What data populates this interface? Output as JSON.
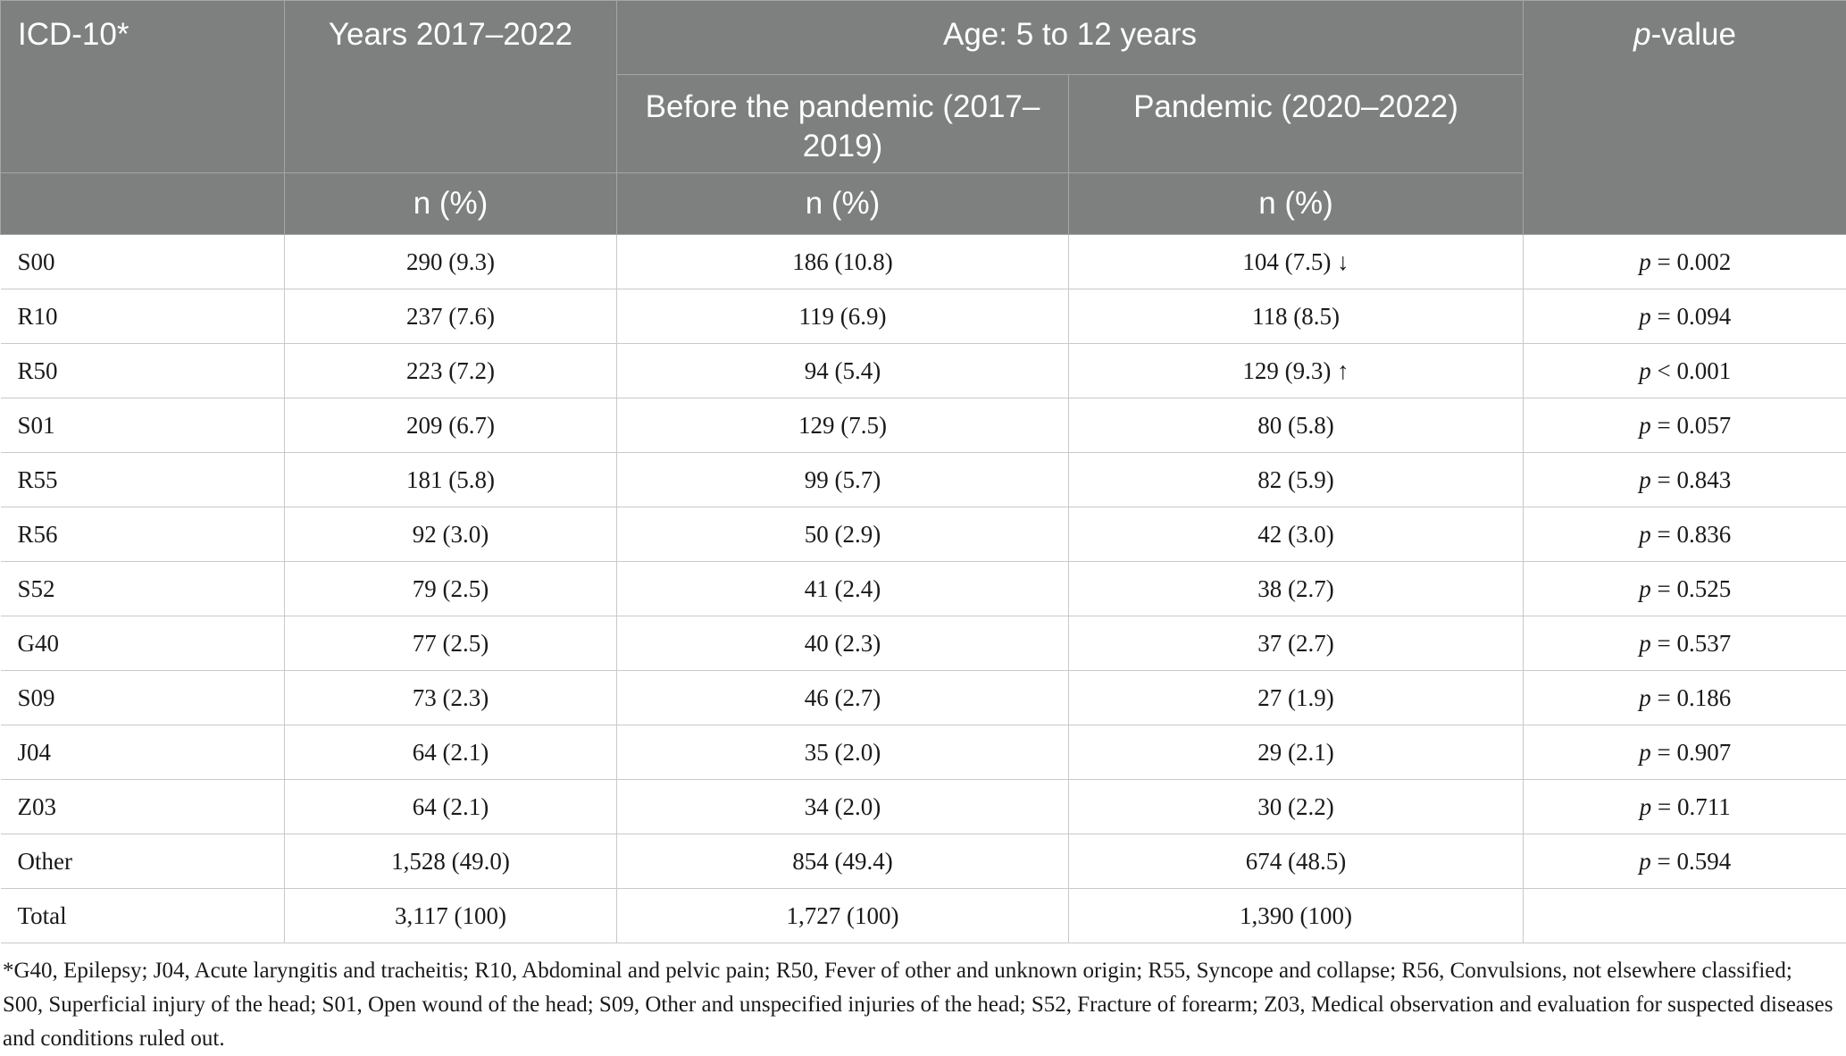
{
  "header": {
    "col_code": "ICD-10*",
    "col_years": "Years 2017–2022",
    "group_age": "Age: 5 to 12 years",
    "col_before": "Before the pandemic (2017–2019)",
    "col_pandemic": "Pandemic (2020–2022)",
    "col_p_italic": "p",
    "col_p_rest": "-value",
    "unit": "n (%)"
  },
  "rows": [
    {
      "code": "S00",
      "years": "290 (9.3)",
      "before": "186 (10.8)",
      "pandemic": "104 (7.5) ↓",
      "p_sym": "p",
      "p_val": " = 0.002"
    },
    {
      "code": "R10",
      "years": "237 (7.6)",
      "before": "119 (6.9)",
      "pandemic": "118 (8.5)",
      "p_sym": "p",
      "p_val": " = 0.094"
    },
    {
      "code": "R50",
      "years": "223 (7.2)",
      "before": "94 (5.4)",
      "pandemic": "129 (9.3) ↑",
      "p_sym": "p",
      "p_val": " < 0.001"
    },
    {
      "code": "S01",
      "years": "209 (6.7)",
      "before": "129 (7.5)",
      "pandemic": "80 (5.8)",
      "p_sym": "p",
      "p_val": " = 0.057"
    },
    {
      "code": "R55",
      "years": "181 (5.8)",
      "before": "99 (5.7)",
      "pandemic": "82 (5.9)",
      "p_sym": "p",
      "p_val": " = 0.843"
    },
    {
      "code": "R56",
      "years": "92 (3.0)",
      "before": "50 (2.9)",
      "pandemic": "42 (3.0)",
      "p_sym": "p",
      "p_val": " = 0.836"
    },
    {
      "code": "S52",
      "years": "79 (2.5)",
      "before": "41 (2.4)",
      "pandemic": "38 (2.7)",
      "p_sym": "p",
      "p_val": " = 0.525"
    },
    {
      "code": "G40",
      "years": "77 (2.5)",
      "before": "40 (2.3)",
      "pandemic": "37 (2.7)",
      "p_sym": "p",
      "p_val": " = 0.537"
    },
    {
      "code": "S09",
      "years": "73 (2.3)",
      "before": "46 (2.7)",
      "pandemic": "27 (1.9)",
      "p_sym": "p",
      "p_val": " = 0.186"
    },
    {
      "code": "J04",
      "years": "64 (2.1)",
      "before": "35 (2.0)",
      "pandemic": "29 (2.1)",
      "p_sym": "p",
      "p_val": " = 0.907"
    },
    {
      "code": "Z03",
      "years": "64 (2.1)",
      "before": "34 (2.0)",
      "pandemic": "30 (2.2)",
      "p_sym": "p",
      "p_val": " = 0.711"
    },
    {
      "code": "Other",
      "years": "1,528 (49.0)",
      "before": "854 (49.4)",
      "pandemic": "674 (48.5)",
      "p_sym": "p",
      "p_val": " = 0.594"
    },
    {
      "code": "Total",
      "years": "3,117 (100)",
      "before": "1,727 (100)",
      "pandemic": "1,390 (100)",
      "p_sym": "",
      "p_val": ""
    }
  ],
  "footnote": "*G40, Epilepsy; J04, Acute laryngitis and tracheitis; R10, Abdominal and pelvic pain; R50, Fever of other and unknown origin; R55, Syncope and collapse; R56, Convulsions, not elsewhere classified; S00, Superficial injury of the head; S01, Open wound of the head; S09, Other and unspecified injuries of the head; S52, Fracture of forearm; Z03, Medical observation and evaluation for suspected diseases and conditions ruled out.",
  "colors": {
    "header_bg": "#7e807f",
    "header_text": "#ffffff",
    "grid": "#c9c9c9"
  }
}
